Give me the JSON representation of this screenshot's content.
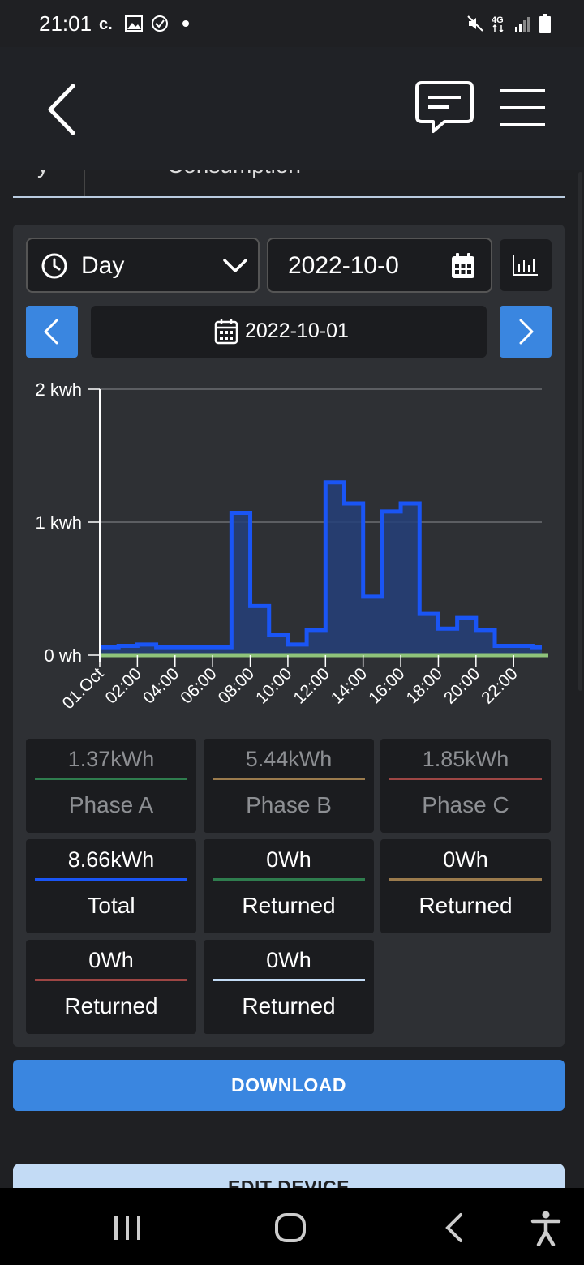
{
  "status_bar": {
    "time": "21:01",
    "network": "4G"
  },
  "tabs": {
    "partial_label": "Consumption",
    "partial_prev": "y"
  },
  "controls": {
    "period": "Day",
    "date_value": "2022-10-0",
    "current_date": "2022-10-01"
  },
  "colors": {
    "accent": "#3a86e0",
    "total_line": "#1a55f5",
    "phase_a": "#2f7d4e",
    "phase_b": "#9b7b4d",
    "phase_c": "#9e4644",
    "returned_light": "#c3dbf5",
    "returned_green": "#8fc37a"
  },
  "chart_data": {
    "type": "area",
    "y_tick_labels": [
      "0 wh",
      "1 kwh",
      "2 kwh"
    ],
    "ylim": [
      0,
      2
    ],
    "x_tick_labels": [
      "01.Oct",
      "02:00",
      "04:00",
      "06:00",
      "08:00",
      "10:00",
      "12:00",
      "14:00",
      "16:00",
      "18:00",
      "20:00",
      "22:00"
    ],
    "series": [
      {
        "hours": [
          0,
          1,
          2,
          3,
          4,
          5,
          6,
          7,
          8,
          9,
          10,
          11,
          12,
          13,
          14,
          15,
          16,
          17,
          18,
          19,
          20,
          21,
          22,
          23
        ],
        "values": [
          0.06,
          0.07,
          0.08,
          0.06,
          0.06,
          0.06,
          0.06,
          1.07,
          0.37,
          0.15,
          0.08,
          0.19,
          1.3,
          1.14,
          0.44,
          1.08,
          1.14,
          0.31,
          0.2,
          0.28,
          0.19,
          0.07,
          0.07,
          0.06
        ],
        "color": "#1a55f5"
      },
      {
        "values": [
          0,
          0,
          0,
          0,
          0,
          0,
          0,
          0,
          0,
          0,
          0,
          0,
          0,
          0,
          0,
          0,
          0,
          0,
          0,
          0,
          0,
          0,
          0,
          0
        ],
        "color": "#8fc37a"
      }
    ],
    "grid": true
  },
  "stats": [
    {
      "value": "1.37kWh",
      "label": "Phase A",
      "color": "#2f7d4e"
    },
    {
      "value": "5.44kWh",
      "label": "Phase B",
      "color": "#9b7b4d"
    },
    {
      "value": "1.85kWh",
      "label": "Phase C",
      "color": "#9e4644"
    },
    {
      "value": "8.66kWh",
      "label": "Total",
      "color": "#1a55f5"
    },
    {
      "value": "0Wh",
      "label": "Returned",
      "color": "#2f7d4e"
    },
    {
      "value": "0Wh",
      "label": "Returned",
      "color": "#9b7b4d"
    },
    {
      "value": "0Wh",
      "label": "Returned",
      "color": "#9e4644"
    },
    {
      "value": "0Wh",
      "label": "Returned",
      "color": "#c3dbf5"
    }
  ],
  "buttons": {
    "download": "DOWNLOAD",
    "edit_device": "EDIT DEVICE"
  }
}
